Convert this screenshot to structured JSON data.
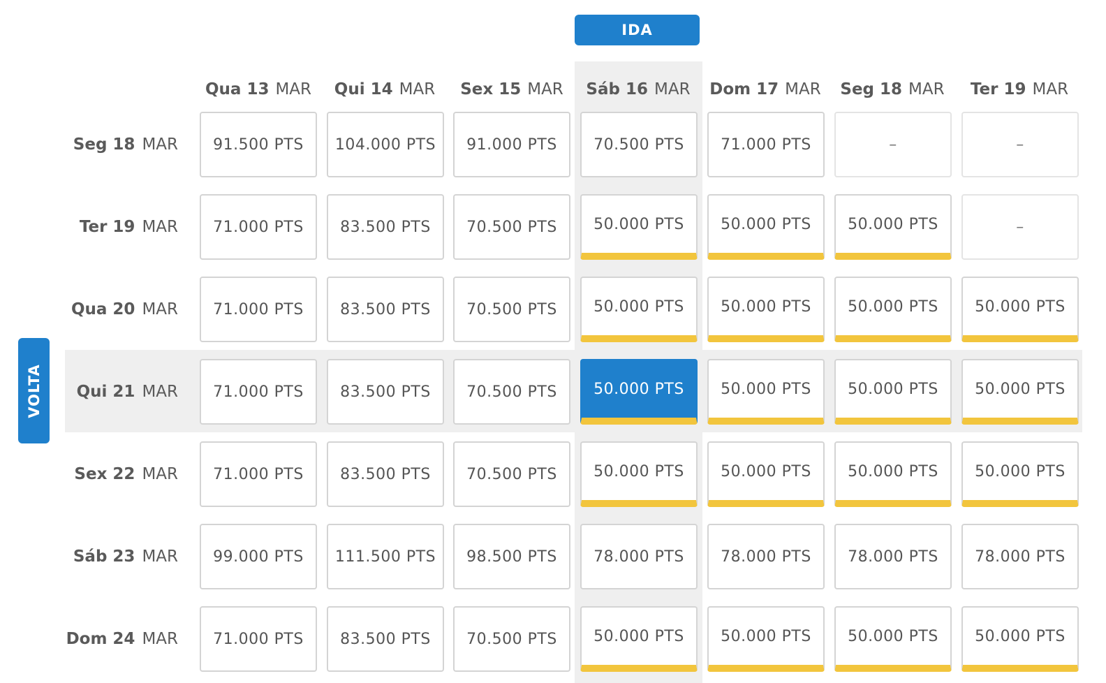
{
  "ida_label": "IDA",
  "volta_label": "VOLTA",
  "colors": {
    "accent": "#1f80cc",
    "best_price_bar": "#f2c53d",
    "highlight_band": "#efefef",
    "cell_border": "#d4d4d4"
  },
  "columns": [
    {
      "day": "Qua 13",
      "month": "MAR"
    },
    {
      "day": "Qui 14",
      "month": "MAR"
    },
    {
      "day": "Sex 15",
      "month": "MAR"
    },
    {
      "day": "Sáb 16",
      "month": "MAR"
    },
    {
      "day": "Dom 17",
      "month": "MAR"
    },
    {
      "day": "Seg 18",
      "month": "MAR"
    },
    {
      "day": "Ter 19",
      "month": "MAR"
    }
  ],
  "selected_column_index": 3,
  "selected_row_index": 3,
  "rows": [
    {
      "day": "Seg 18",
      "month": "MAR",
      "cells": [
        {
          "text": "91.500 PTS",
          "best": false
        },
        {
          "text": "104.000 PTS",
          "best": false
        },
        {
          "text": "91.000 PTS",
          "best": false
        },
        {
          "text": "70.500 PTS",
          "best": false
        },
        {
          "text": "71.000 PTS",
          "best": false
        },
        {
          "text": "–",
          "best": false,
          "empty": true
        },
        {
          "text": "–",
          "best": false,
          "empty": true
        }
      ]
    },
    {
      "day": "Ter 19",
      "month": "MAR",
      "cells": [
        {
          "text": "71.000 PTS",
          "best": false
        },
        {
          "text": "83.500 PTS",
          "best": false
        },
        {
          "text": "70.500 PTS",
          "best": false
        },
        {
          "text": "50.000 PTS",
          "best": true
        },
        {
          "text": "50.000 PTS",
          "best": true
        },
        {
          "text": "50.000 PTS",
          "best": true
        },
        {
          "text": "–",
          "best": false,
          "empty": true
        }
      ]
    },
    {
      "day": "Qua 20",
      "month": "MAR",
      "cells": [
        {
          "text": "71.000 PTS",
          "best": false
        },
        {
          "text": "83.500 PTS",
          "best": false
        },
        {
          "text": "70.500 PTS",
          "best": false
        },
        {
          "text": "50.000 PTS",
          "best": true
        },
        {
          "text": "50.000 PTS",
          "best": true
        },
        {
          "text": "50.000 PTS",
          "best": true
        },
        {
          "text": "50.000 PTS",
          "best": true
        }
      ]
    },
    {
      "day": "Qui 21",
      "month": "MAR",
      "cells": [
        {
          "text": "71.000 PTS",
          "best": false
        },
        {
          "text": "83.500 PTS",
          "best": false
        },
        {
          "text": "70.500 PTS",
          "best": false
        },
        {
          "text": "50.000 PTS",
          "best": true,
          "selected": true
        },
        {
          "text": "50.000 PTS",
          "best": true
        },
        {
          "text": "50.000 PTS",
          "best": true
        },
        {
          "text": "50.000 PTS",
          "best": true
        }
      ]
    },
    {
      "day": "Sex 22",
      "month": "MAR",
      "cells": [
        {
          "text": "71.000 PTS",
          "best": false
        },
        {
          "text": "83.500 PTS",
          "best": false
        },
        {
          "text": "70.500 PTS",
          "best": false
        },
        {
          "text": "50.000 PTS",
          "best": true
        },
        {
          "text": "50.000 PTS",
          "best": true
        },
        {
          "text": "50.000 PTS",
          "best": true
        },
        {
          "text": "50.000 PTS",
          "best": true
        }
      ]
    },
    {
      "day": "Sáb 23",
      "month": "MAR",
      "cells": [
        {
          "text": "99.000 PTS",
          "best": false
        },
        {
          "text": "111.500 PTS",
          "best": false
        },
        {
          "text": "98.500 PTS",
          "best": false
        },
        {
          "text": "78.000 PTS",
          "best": false
        },
        {
          "text": "78.000 PTS",
          "best": false
        },
        {
          "text": "78.000 PTS",
          "best": false
        },
        {
          "text": "78.000 PTS",
          "best": false
        }
      ]
    },
    {
      "day": "Dom 24",
      "month": "MAR",
      "cells": [
        {
          "text": "71.000 PTS",
          "best": false
        },
        {
          "text": "83.500 PTS",
          "best": false
        },
        {
          "text": "70.500 PTS",
          "best": false
        },
        {
          "text": "50.000 PTS",
          "best": true
        },
        {
          "text": "50.000 PTS",
          "best": true
        },
        {
          "text": "50.000 PTS",
          "best": true
        },
        {
          "text": "50.000 PTS",
          "best": true
        }
      ]
    }
  ]
}
